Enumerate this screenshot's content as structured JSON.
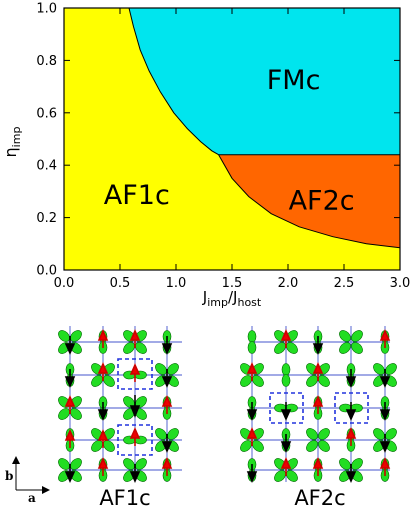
{
  "chart_data": {
    "type": "area",
    "title": "",
    "xlabel": {
      "main": "J",
      "sub1": "imp",
      "slash": "/J",
      "sub2": "host"
    },
    "ylabel": {
      "main": "η",
      "sub": "imp"
    },
    "xlim": [
      0.0,
      3.0
    ],
    "ylim": [
      0.0,
      1.0
    ],
    "xticks": [
      "0.0",
      "0.5",
      "1.0",
      "1.5",
      "2.0",
      "2.5",
      "3.0"
    ],
    "yticks": [
      "0.0",
      "0.2",
      "0.4",
      "0.6",
      "0.8",
      "1.0"
    ],
    "x_tick_values": [
      0,
      0.5,
      1.0,
      1.5,
      2.0,
      2.5,
      3.0
    ],
    "y_tick_values": [
      0,
      0.2,
      0.4,
      0.6,
      0.8,
      1.0
    ],
    "colors": {
      "AF1c": "#ffff00",
      "FMc": "#00e5ee",
      "AF2c": "#ff6600"
    },
    "regions": [
      {
        "name": "AF1c",
        "label_at": [
          0.65,
          0.28
        ]
      },
      {
        "name": "FMc",
        "label_at": [
          2.05,
          0.72
        ]
      },
      {
        "name": "AF2c",
        "label_at": [
          2.3,
          0.26
        ]
      }
    ],
    "boundaries": {
      "af1c_fmc": [
        [
          0.58,
          1.0
        ],
        [
          0.62,
          0.93
        ],
        [
          0.68,
          0.84
        ],
        [
          0.76,
          0.76
        ],
        [
          0.86,
          0.68
        ],
        [
          0.98,
          0.6
        ],
        [
          1.1,
          0.54
        ],
        [
          1.22,
          0.49
        ],
        [
          1.32,
          0.455
        ],
        [
          1.38,
          0.44
        ]
      ],
      "af2c_fmc": [
        [
          1.38,
          0.44
        ],
        [
          3.0,
          0.44
        ]
      ],
      "af1c_af2c": [
        [
          1.38,
          0.44
        ],
        [
          1.5,
          0.35
        ],
        [
          1.65,
          0.28
        ],
        [
          1.85,
          0.215
        ],
        [
          2.1,
          0.165
        ],
        [
          2.4,
          0.127
        ],
        [
          2.7,
          0.1
        ],
        [
          3.0,
          0.085
        ]
      ]
    }
  },
  "panels": [
    {
      "label": "AF1c"
    },
    {
      "label": "AF2c"
    }
  ],
  "frame_axes": {
    "b": "b",
    "a": "a"
  }
}
